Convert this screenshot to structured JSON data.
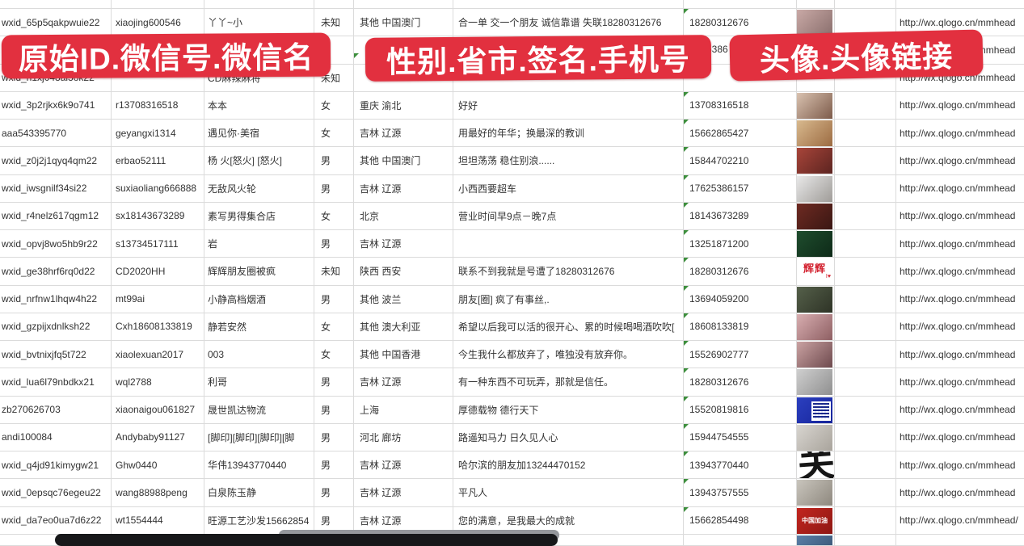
{
  "banners": {
    "left": "原始ID.微信号.微信名",
    "middle": "性别.省市.签名.手机号",
    "right": "头像.头像链接",
    "color": "#e2303f"
  },
  "fragments": {
    "row2_phone": "5386"
  },
  "url_value": "http://wx.qlogo.cn/mmhead",
  "rows": [
    {
      "wxid": "wxid_65p5qakpwuie22",
      "wechat_id": "xiaojing600546",
      "name": "丫丫~小",
      "gender": "未知",
      "region": "其他 中国澳门",
      "signature": "合一单 交一个朋友 诚信靠谱 失联18280312676",
      "phone": "18280312676",
      "url": "http://wx.qlogo.cn/mmhead",
      "marker": true,
      "avatar": {
        "kind": "photo",
        "colors": [
          "#c9a9a6",
          "#8a6f6d"
        ]
      }
    },
    {
      "wxid": "",
      "wechat_id": "",
      "name": "",
      "gender": "",
      "region": "",
      "signature": "",
      "phone": "",
      "url": "http://wx.qlogo.cn/mmhead",
      "marker": false,
      "avatar": {
        "kind": "photo",
        "colors": [
          "#c3cbd4",
          "#eef1f4"
        ]
      }
    },
    {
      "wxid": "wxid_h1xj048al3ok22",
      "wechat_id": "",
      "name": "CD麻辣麻将",
      "gender": "未知",
      "region": "",
      "signature": "",
      "phone": "",
      "url": "http://wx.qlogo.cn/mmhead",
      "marker": false,
      "avatar": null
    },
    {
      "wxid": "wxid_3p2rjkx6k9o741",
      "wechat_id": "r13708316518",
      "name": "本本",
      "gender": "女",
      "region": "重庆 渝北",
      "signature": "好好",
      "phone": "13708316518",
      "url": "http://wx.qlogo.cn/mmhead",
      "marker": true,
      "avatar": {
        "kind": "photo",
        "colors": [
          "#d9c2b0",
          "#7d5b4a"
        ]
      }
    },
    {
      "wxid": "aaa543395770",
      "wechat_id": "geyangxi1314",
      "name": "遇见你·美宿",
      "gender": "女",
      "region": "吉林 辽源",
      "signature": "用最好的年华；换最深的教训",
      "phone": "15662865427",
      "url": "http://wx.qlogo.cn/mmhead",
      "marker": true,
      "avatar": {
        "kind": "photo",
        "colors": [
          "#d8b98e",
          "#9c6b42"
        ]
      }
    },
    {
      "wxid": "wxid_z0j2j1qyq4qm22",
      "wechat_id": "erbao52111",
      "name": "杨 火[怒火] [怒火]",
      "gender": "男",
      "region": "其他 中国澳门",
      "signature": "坦坦荡荡 稳住别浪......",
      "phone": "15844702210",
      "url": "http://wx.qlogo.cn/mmhead",
      "marker": true,
      "avatar": {
        "kind": "photo",
        "colors": [
          "#a8453a",
          "#5c2420"
        ]
      }
    },
    {
      "wxid": "wxid_iwsgnilf34si22",
      "wechat_id": "suxiaoliang666888",
      "name": "无敌风火轮",
      "gender": "男",
      "region": "吉林 辽源",
      "signature": "小西西要超车",
      "phone": "17625386157",
      "url": "http://wx.qlogo.cn/mmhead",
      "marker": true,
      "avatar": {
        "kind": "photo",
        "colors": [
          "#e8e8e8",
          "#9f9c98"
        ]
      }
    },
    {
      "wxid": "wxid_r4nelz617qgm12",
      "wechat_id": "sx18143673289",
      "name": "素写男得集合店",
      "gender": "女",
      "region": "北京",
      "signature": "营业时间早9点－晚7点",
      "phone": "18143673289",
      "url": "http://wx.qlogo.cn/mmhead",
      "marker": true,
      "avatar": {
        "kind": "photo",
        "colors": [
          "#6e2a22",
          "#3a1713"
        ]
      }
    },
    {
      "wxid": "wxid_opvj8wo5hb9r22",
      "wechat_id": "s13734517111",
      "name": "岩",
      "gender": "男",
      "region": "吉林 辽源",
      "signature": "",
      "phone": "13251871200",
      "url": "http://wx.qlogo.cn/mmhead",
      "marker": true,
      "avatar": {
        "kind": "photo",
        "colors": [
          "#1f4d2e",
          "#0e2a18"
        ]
      }
    },
    {
      "wxid": "wxid_ge38hrf6rq0d22",
      "wechat_id": "CD2020HH",
      "name": "辉辉朋友圈被疯",
      "gender": "未知",
      "region": "陕西 西安",
      "signature": "联系不到我就是号遭了18280312676",
      "phone": "18280312676",
      "url": "http://wx.qlogo.cn/mmhead",
      "marker": true,
      "avatar": {
        "kind": "text",
        "label": "辉辉",
        "sub": "I♥",
        "colors": [
          "#ffffff",
          "#ffffff"
        ]
      }
    },
    {
      "wxid": "wxid_nrfnw1lhqw4h22",
      "wechat_id": "mt99ai",
      "name": "小静高档烟酒",
      "gender": "男",
      "region": "其他 波兰",
      "signature": "朋友[圈] 疯了有事丝,.",
      "phone": "13694059200",
      "url": "http://wx.qlogo.cn/mmhead",
      "marker": true,
      "avatar": {
        "kind": "photo",
        "colors": [
          "#55604a",
          "#2e3326"
        ]
      }
    },
    {
      "wxid": "wxid_gzpijxdnlksh22",
      "wechat_id": "Cxh18608133819",
      "name": "静若安然",
      "gender": "女",
      "region": "其他 澳大利亚",
      "signature": "希望以后我可以活的很开心、累的时候喝喝酒吹吹[",
      "phone": "18608133819",
      "url": "http://wx.qlogo.cn/mmhead",
      "marker": true,
      "avatar": {
        "kind": "photo",
        "colors": [
          "#d8aeb0",
          "#8e5f63"
        ]
      }
    },
    {
      "wxid": "wxid_bvtnixjfq5t722",
      "wechat_id": "xiaolexuan2017",
      "name": "003",
      "gender": "女",
      "region": "其他 中国香港",
      "signature": "今生我什么都放弃了，唯独没有放弃你。",
      "phone": "15526902777",
      "url": "http://wx.qlogo.cn/mmhead",
      "marker": true,
      "avatar": {
        "kind": "photo",
        "colors": [
          "#caa2a2",
          "#6e4a4e"
        ]
      }
    },
    {
      "wxid": "wxid_lua6l79nbdkx21",
      "wechat_id": "wql2788",
      "name": "利哥",
      "gender": "男",
      "region": "吉林 辽源",
      "signature": "有一种东西不可玩弄，那就是信任。",
      "phone": "18280312676",
      "url": "http://wx.qlogo.cn/mmhead",
      "marker": true,
      "avatar": {
        "kind": "photo",
        "colors": [
          "#cfcfcf",
          "#8f8f8f"
        ]
      }
    },
    {
      "wxid": "zb270626703",
      "wechat_id": "xiaonaigou061827",
      "name": "晟世凯达物流",
      "gender": "男",
      "region": "上海",
      "signature": "厚德载物 德行天下",
      "phone": "15520819816",
      "url": "http://wx.qlogo.cn/mmhead",
      "marker": true,
      "avatar": {
        "kind": "qr",
        "colors": [
          "#2b3fbf",
          "#16249a"
        ]
      }
    },
    {
      "wxid": "andi100084",
      "wechat_id": "Andybaby91127",
      "name": "[脚印][脚印][脚印][脚",
      "gender": "男",
      "region": "河北 廊坊",
      "signature": "路遥知马力 日久见人心",
      "phone": "15944754555",
      "url": "http://wx.qlogo.cn/mmhead",
      "marker": true,
      "avatar": {
        "kind": "photo",
        "colors": [
          "#d8d5d0",
          "#a9a49c"
        ]
      }
    },
    {
      "wxid": "wxid_q4jd91kimygw21",
      "wechat_id": "Ghw0440",
      "name": "华伟13943770440",
      "gender": "男",
      "region": "吉林 辽源",
      "signature": "哈尔滨的朋友加13244470152",
      "phone": "13943770440",
      "url": "http://wx.qlogo.cn/mmhead",
      "marker": true,
      "avatar": {
        "kind": "calligraphy",
        "label": "关",
        "colors": [
          "#ffffff",
          "#ffffff"
        ]
      }
    },
    {
      "wxid": "wxid_0epsqc76egeu22",
      "wechat_id": "wang88988peng",
      "name": "白泉陈玉静",
      "gender": "男",
      "region": "吉林 辽源",
      "signature": "平凡人",
      "phone": "13943757555",
      "url": "http://wx.qlogo.cn/mmhead",
      "marker": true,
      "avatar": {
        "kind": "photo",
        "colors": [
          "#c9c5bd",
          "#8e887e"
        ]
      }
    },
    {
      "wxid": "wxid_da7eo0ua7d6z22",
      "wechat_id": "wt1554444",
      "name": "旺源工艺沙发15662854",
      "gender": "男",
      "region": "吉林 辽源",
      "signature": "您的满意，是我最大的成就",
      "phone": "15662854498",
      "url": "http://wx.qlogo.cn/mmhead/",
      "marker": true,
      "avatar": {
        "kind": "redbanner",
        "label": "中国加油",
        "colors": [
          "#c2261f",
          "#8e1713"
        ]
      }
    }
  ],
  "partial_row": {
    "avatar": {
      "kind": "photo",
      "colors": [
        "#5a7ea6",
        "#34506e"
      ]
    }
  }
}
